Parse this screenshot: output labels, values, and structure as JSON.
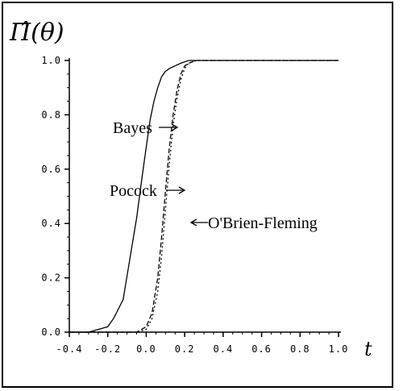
{
  "chart_data": {
    "type": "line",
    "ylabel": "Π̂(θ)",
    "xlabel": "t",
    "xlim": [
      -0.4,
      1.0
    ],
    "ylim": [
      0.0,
      1.0
    ],
    "xticks": [
      "-0.4",
      "-0.2",
      "0.0",
      "0.2",
      "0.4",
      "0.6",
      "0.8",
      "1.0"
    ],
    "yticks": [
      "0.0",
      "0.2",
      "0.4",
      "0.6",
      "0.8",
      "1.0"
    ],
    "grid": false,
    "legend": "none",
    "series": [
      {
        "name": "Bayes",
        "style": "solid",
        "x": [
          -0.4,
          -0.3,
          -0.2,
          -0.17,
          -0.12,
          -0.09,
          -0.05,
          -0.02,
          0.0,
          0.02,
          0.04,
          0.06,
          0.08,
          0.1,
          0.12,
          0.15,
          0.18,
          0.22,
          0.3,
          1.0
        ],
        "y": [
          0.0,
          0.0,
          0.02,
          0.05,
          0.12,
          0.25,
          0.42,
          0.58,
          0.68,
          0.78,
          0.85,
          0.9,
          0.94,
          0.96,
          0.97,
          0.98,
          0.99,
          1.0,
          1.0,
          1.0
        ]
      },
      {
        "name": "Pocock",
        "style": "dashed",
        "x": [
          -0.4,
          -0.05,
          0.0,
          0.03,
          0.06,
          0.08,
          0.1,
          0.12,
          0.14,
          0.16,
          0.18,
          0.2,
          0.22,
          0.26,
          1.0
        ],
        "y": [
          0.0,
          0.0,
          0.02,
          0.07,
          0.2,
          0.35,
          0.52,
          0.68,
          0.8,
          0.89,
          0.95,
          0.98,
          0.99,
          1.0,
          1.0
        ]
      },
      {
        "name": "O'Brien-Fleming",
        "style": "dotted",
        "x": [
          -0.4,
          -0.05,
          0.0,
          0.03,
          0.06,
          0.08,
          0.1,
          0.12,
          0.14,
          0.16,
          0.18,
          0.2,
          0.22,
          0.26,
          1.0
        ],
        "y": [
          0.0,
          0.0,
          0.01,
          0.05,
          0.15,
          0.28,
          0.45,
          0.62,
          0.76,
          0.86,
          0.93,
          0.97,
          0.99,
          1.0,
          1.0
        ]
      }
    ],
    "annotations": [
      {
        "text": "Bayes",
        "arrow": "right",
        "points_to": "Pocock"
      },
      {
        "text": "Pocock",
        "arrow": "right",
        "points_to": "O'Brien-Fleming"
      },
      {
        "text": "O'Brien-Fleming",
        "arrow": "left",
        "points_to": "O'Brien-Fleming"
      }
    ]
  }
}
